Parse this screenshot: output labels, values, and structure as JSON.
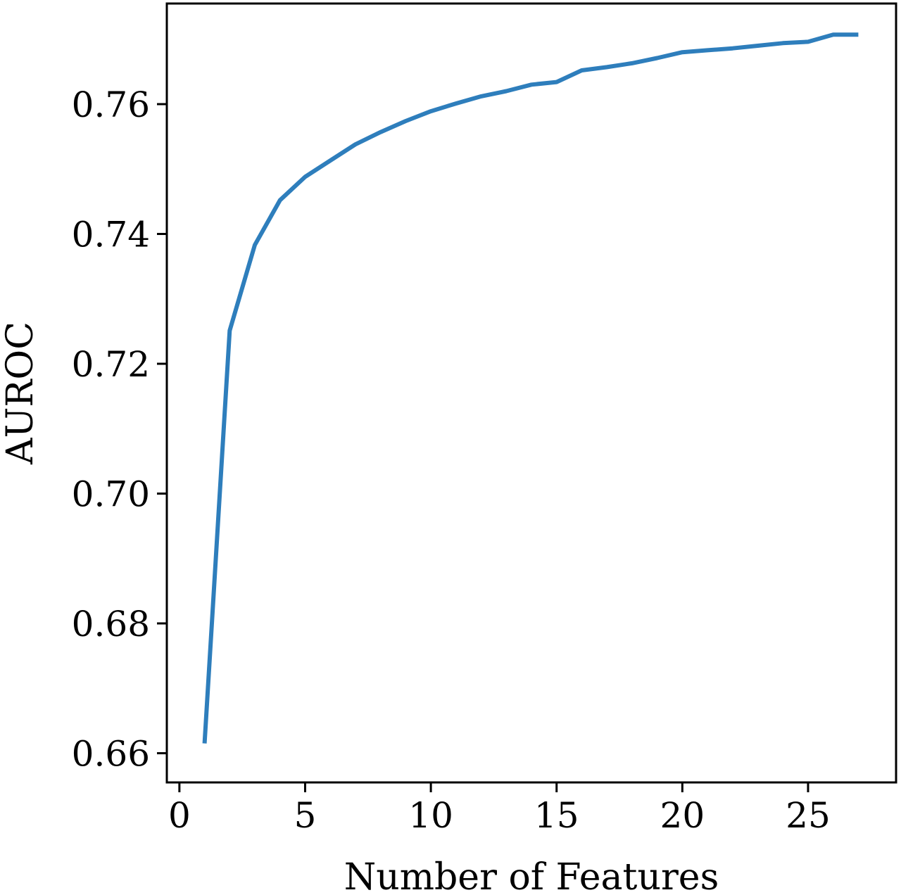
{
  "chart_data": {
    "type": "line",
    "title": "",
    "xlabel": "Number of Features",
    "ylabel": "AUROC",
    "xlim": [
      -0.5,
      28.5
    ],
    "ylim": [
      0.6555,
      0.7755
    ],
    "xticks": [
      0,
      5,
      10,
      15,
      20,
      25
    ],
    "xtick_labels": [
      "0",
      "5",
      "10",
      "15",
      "20",
      "25"
    ],
    "yticks": [
      0.66,
      0.68,
      0.7,
      0.72,
      0.74,
      0.76
    ],
    "ytick_labels": [
      "0.66",
      "0.68",
      "0.70",
      "0.72",
      "0.74",
      "0.76"
    ],
    "grid": false,
    "line_color": "#2e7ebc",
    "series": [
      {
        "x": [
          1,
          2,
          3,
          4,
          5,
          6,
          7,
          8,
          9,
          10,
          11,
          12,
          13,
          14,
          15,
          16,
          17,
          18,
          19,
          20,
          21,
          22,
          23,
          24,
          25,
          26,
          27
        ],
        "y": [
          0.6615,
          0.7251,
          0.7383,
          0.7452,
          0.7488,
          0.7513,
          0.7538,
          0.7557,
          0.7574,
          0.7589,
          0.7601,
          0.7612,
          0.762,
          0.763,
          0.7634,
          0.7652,
          0.7657,
          0.7663,
          0.7671,
          0.768,
          0.7683,
          0.7686,
          0.769,
          0.7694,
          0.7696,
          0.7707,
          0.7707
        ]
      }
    ]
  }
}
